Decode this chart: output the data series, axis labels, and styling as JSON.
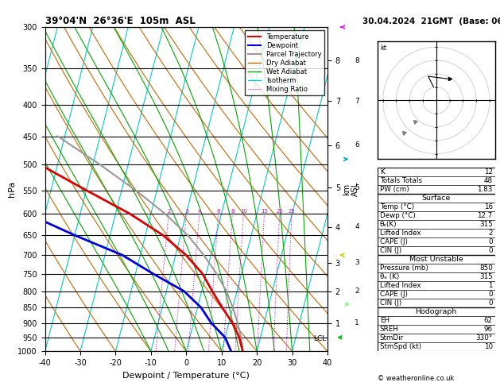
{
  "title_left": "39°04'N  26°36'E  105m  ASL",
  "title_right": "30.04.2024  21GMT  (Base: 06)",
  "xlabel": "Dewpoint / Temperature (°C)",
  "ylabel_left": "hPa",
  "P_min": 300,
  "P_max": 1000,
  "T_min": -40,
  "T_max": 40,
  "skew": 45,
  "pressure_levels": [
    300,
    350,
    400,
    450,
    500,
    550,
    600,
    650,
    700,
    750,
    800,
    850,
    900,
    950,
    1000
  ],
  "isotherm_step": 10,
  "dry_adiabat_thetas": [
    -30,
    -20,
    -10,
    0,
    10,
    20,
    30,
    40,
    50,
    60,
    70,
    80,
    90,
    100
  ],
  "wet_adiabat_T0s": [
    -10,
    -5,
    0,
    5,
    10,
    15,
    20,
    25,
    30,
    35
  ],
  "mixing_ratio_values": [
    2,
    3,
    4,
    6,
    8,
    10,
    15,
    20,
    25
  ],
  "temp_profile_T": [
    16,
    14,
    11,
    7,
    3,
    -1,
    -7,
    -15,
    -26,
    -40,
    -55,
    -70
  ],
  "temp_profile_P": [
    1000,
    950,
    900,
    850,
    800,
    750,
    700,
    650,
    600,
    550,
    500,
    450
  ],
  "dewp_profile_T": [
    12.7,
    10,
    5,
    1,
    -5,
    -15,
    -25,
    -40,
    -55,
    -68,
    -75,
    -80
  ],
  "dewp_profile_P": [
    1000,
    950,
    900,
    850,
    800,
    750,
    700,
    650,
    600,
    550,
    500,
    450
  ],
  "parcel_profile_T": [
    16,
    14.5,
    12.5,
    10,
    7,
    3,
    -2,
    -8,
    -16,
    -26,
    -38,
    -52
  ],
  "parcel_profile_P": [
    1000,
    950,
    900,
    850,
    800,
    750,
    700,
    650,
    600,
    550,
    500,
    450
  ],
  "lcl_pressure": 955,
  "km_ticks": [
    1,
    2,
    3,
    4,
    5,
    6,
    7,
    8
  ],
  "km_pressures": [
    900,
    800,
    720,
    630,
    545,
    465,
    395,
    340
  ],
  "bg_color": "#ffffff",
  "isotherm_color": "#00cccc",
  "dry_adiabat_color": "#cc6600",
  "wet_adiabat_color": "#00aa00",
  "mixing_ratio_color": "#cc00cc",
  "temp_color": "#dd0000",
  "dewp_color": "#0000dd",
  "parcel_color": "#999999",
  "stats": {
    "K": 12,
    "Totals_Totals": 48,
    "PW_cm": 1.83,
    "Surface_Temp": 16,
    "Surface_Dewp": 12.7,
    "Surface_theta_e": 315,
    "Surface_LI": 2,
    "Surface_CAPE": 0,
    "Surface_CIN": 0,
    "MU_Pressure": 850,
    "MU_theta_e": 315,
    "MU_LI": 1,
    "MU_CAPE": 0,
    "MU_CIN": 0,
    "EH": 62,
    "SREH": 96,
    "StmDir": 330,
    "StmSpd": 10
  }
}
